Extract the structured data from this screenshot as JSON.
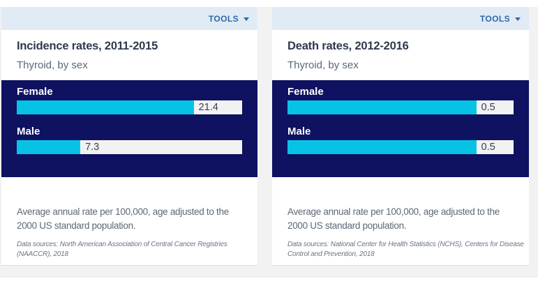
{
  "cards": [
    {
      "tools_label": "TOOLS",
      "title": "Incidence rates, 2011-2015",
      "subtitle": "Thyroid, by sex",
      "bars": [
        {
          "label": "Female",
          "value": "21.4",
          "fill_pct": 78.5
        },
        {
          "label": "Male",
          "value": "7.3",
          "fill_pct": 28.2
        }
      ],
      "note_lines": [
        "Average annual rate per 100,000, age adjusted to the",
        "2000 US standard population."
      ],
      "source_lines": [
        "Data sources: North American Association of Central Cancer Registries",
        "(NAACCR), 2018"
      ]
    },
    {
      "tools_label": "TOOLS",
      "title": "Death rates, 2012-2016",
      "subtitle": "Thyroid, by sex",
      "bars": [
        {
          "label": "Female",
          "value": "0.5",
          "fill_pct": 83.5
        },
        {
          "label": "Male",
          "value": "0.5",
          "fill_pct": 83.5
        }
      ],
      "note_lines": [
        "Average annual rate per 100,000, age adjusted to the",
        "2000 US standard population."
      ],
      "source_lines": [
        "Data sources: National Center for Health Statistics (NCHS), Centers for Disease",
        "Control and Prevention, 2018"
      ]
    }
  ],
  "colors": {
    "chart_background": "#0f1161",
    "bar_fill": "#06c3e6",
    "bar_track": "#f2f2f2",
    "header_bar": "#e0ebf6",
    "tools_blue": "#3366aa",
    "page_band": "#f2f2f3"
  },
  "chart_data": [
    {
      "type": "bar",
      "orientation": "horizontal",
      "title": "Incidence rates, 2011-2015",
      "subtitle": "Thyroid, by sex",
      "categories": [
        "Female",
        "Male"
      ],
      "values": [
        21.4,
        7.3
      ],
      "value_labels": [
        "21.4",
        "7.3"
      ],
      "note": "Average annual rate per 100,000, age adjusted to the 2000 US standard population.",
      "source": "Data sources: North American Association of Central Cancer Registries (NAACCR), 2018",
      "legend": false,
      "grid": false
    },
    {
      "type": "bar",
      "orientation": "horizontal",
      "title": "Death rates, 2012-2016",
      "subtitle": "Thyroid, by sex",
      "categories": [
        "Female",
        "Male"
      ],
      "values": [
        0.5,
        0.5
      ],
      "value_labels": [
        "0.5",
        "0.5"
      ],
      "note": "Average annual rate per 100,000, age adjusted to the 2000 US standard population.",
      "source": "Data sources: National Center for Health Statistics (NCHS), Centers for Disease Control and Prevention, 2018",
      "legend": false,
      "grid": false
    }
  ]
}
